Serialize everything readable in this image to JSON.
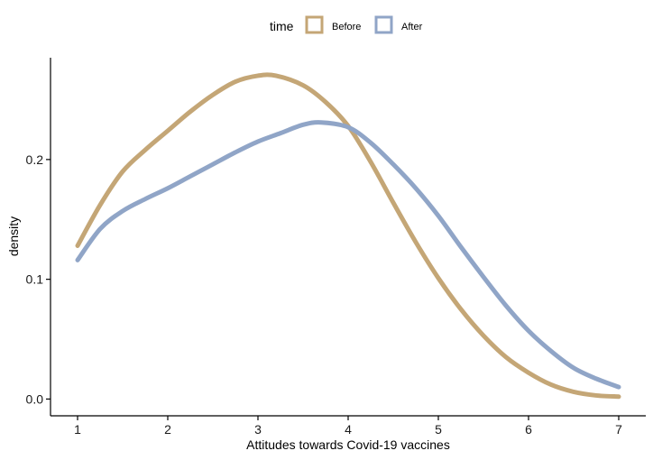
{
  "chart_data": {
    "type": "line",
    "subtype": "density",
    "xlabel": "Attitudes towards Covid-19 vaccines",
    "ylabel": "density",
    "xlim": [
      0.7,
      7.3
    ],
    "ylim": [
      -0.014,
      0.285
    ],
    "xticks": [
      1,
      2,
      3,
      4,
      5,
      6,
      7
    ],
    "xtick_labels": [
      "1",
      "2",
      "3",
      "4",
      "5",
      "6",
      "7"
    ],
    "yticks": [
      0.0,
      0.1,
      0.2
    ],
    "ytick_labels": [
      "0.0",
      "0.1",
      "0.2"
    ],
    "grid": false,
    "legend": {
      "position": "top",
      "title": "time",
      "entries": [
        "Before",
        "After"
      ]
    },
    "series": [
      {
        "name": "Before",
        "color": "#c4a676",
        "x": [
          1,
          1.25,
          1.5,
          1.75,
          2,
          2.25,
          2.5,
          2.75,
          3,
          3.2,
          3.5,
          3.75,
          4,
          4.25,
          4.5,
          4.75,
          5,
          5.25,
          5.5,
          5.75,
          6,
          6.25,
          6.5,
          6.75,
          7
        ],
        "y": [
          0.128,
          0.162,
          0.19,
          0.208,
          0.224,
          0.24,
          0.254,
          0.265,
          0.27,
          0.27,
          0.262,
          0.248,
          0.228,
          0.198,
          0.164,
          0.131,
          0.101,
          0.075,
          0.053,
          0.035,
          0.022,
          0.012,
          0.006,
          0.003,
          0.002
        ]
      },
      {
        "name": "After",
        "color": "#90a5c7",
        "x": [
          1,
          1.25,
          1.5,
          1.75,
          2,
          2.25,
          2.5,
          2.75,
          3,
          3.25,
          3.5,
          3.7,
          4,
          4.25,
          4.5,
          4.75,
          5,
          5.25,
          5.5,
          5.75,
          6,
          6.25,
          6.5,
          6.75,
          7
        ],
        "y": [
          0.116,
          0.142,
          0.157,
          0.167,
          0.176,
          0.186,
          0.196,
          0.206,
          0.215,
          0.222,
          0.229,
          0.231,
          0.227,
          0.214,
          0.196,
          0.176,
          0.153,
          0.127,
          0.102,
          0.078,
          0.057,
          0.04,
          0.026,
          0.017,
          0.01
        ]
      }
    ]
  }
}
